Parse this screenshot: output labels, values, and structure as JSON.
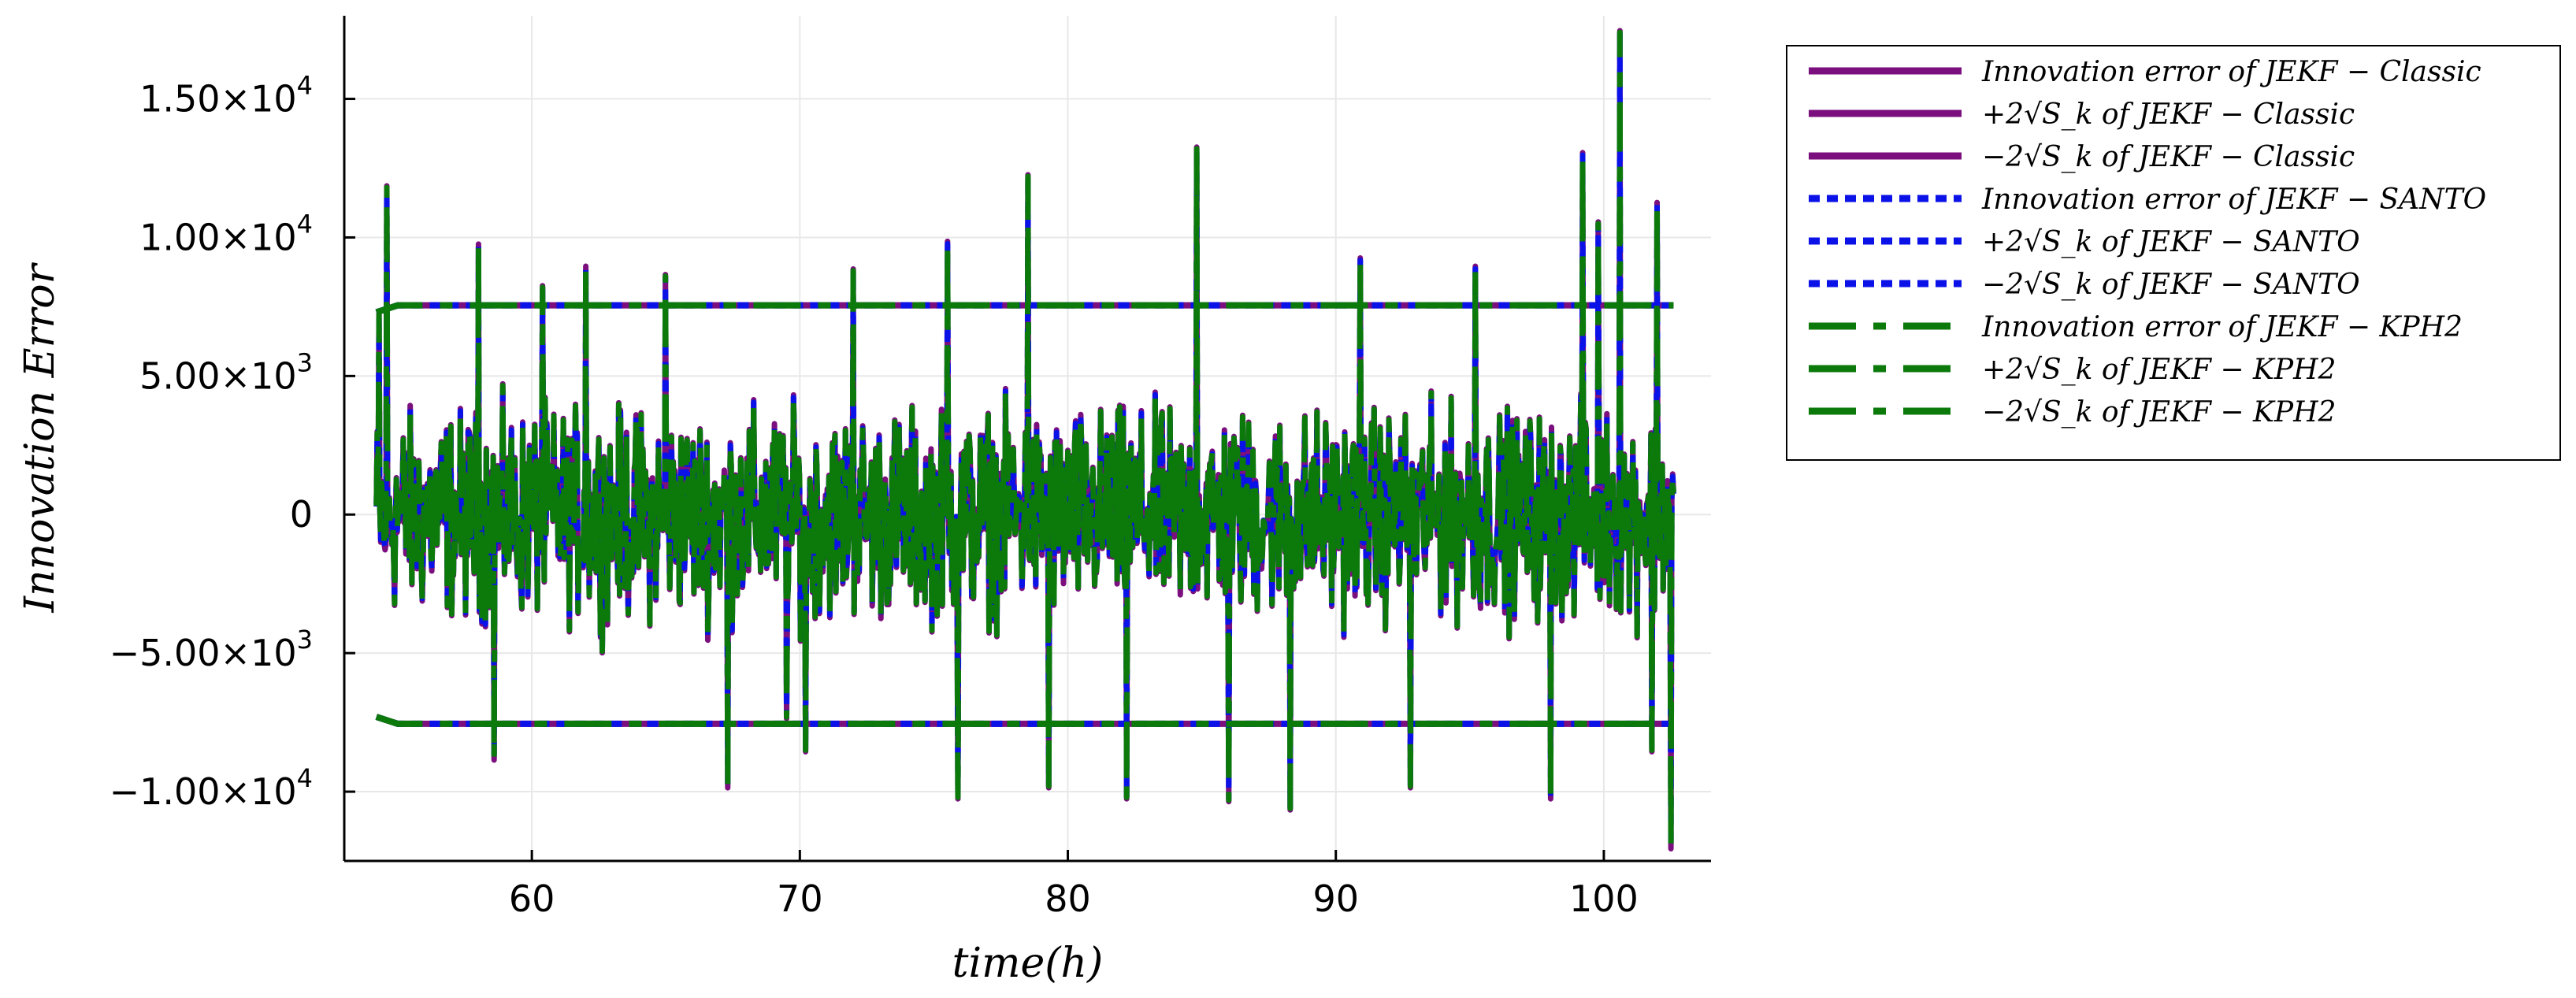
{
  "chart_data": {
    "type": "line",
    "title": "",
    "xlabel": "time(h)",
    "ylabel": "Innovation Error",
    "xlim": [
      53,
      104
    ],
    "ylim": [
      -12500,
      18000
    ],
    "grid": true,
    "legend_position": "outside-right-top",
    "x_ticks": [
      {
        "value": 60,
        "label": "60"
      },
      {
        "value": 70,
        "label": "70"
      },
      {
        "value": 80,
        "label": "80"
      },
      {
        "value": 90,
        "label": "90"
      },
      {
        "value": 100,
        "label": "100"
      }
    ],
    "y_ticks": [
      {
        "value": -10000,
        "mantissa": "−1.00×10",
        "exp": "4"
      },
      {
        "value": -5000,
        "mantissa": "−5.00×10",
        "exp": "3"
      },
      {
        "value": 0,
        "mantissa": "0",
        "exp": ""
      },
      {
        "value": 5000,
        "mantissa": "5.00×10",
        "exp": "3"
      },
      {
        "value": 10000,
        "mantissa": "1.00×10",
        "exp": "4"
      },
      {
        "value": 15000,
        "mantissa": "1.50×10",
        "exp": "4"
      }
    ],
    "series": [
      {
        "name": "Innovation error of JEKF − Classic",
        "color": "#7b0f7e",
        "style": "solid",
        "role": "innovation",
        "filter": "Classic"
      },
      {
        "name": "+2√S_k of JEKF − Classic",
        "color": "#7b0f7e",
        "style": "solid",
        "role": "upper",
        "filter": "Classic",
        "values": [
          7300,
          7550,
          7550,
          7550
        ]
      },
      {
        "name": "−2√S_k of JEKF − Classic",
        "color": "#7b0f7e",
        "style": "solid",
        "role": "lower",
        "filter": "Classic",
        "values": [
          -7300,
          -7550,
          -7550,
          -7550
        ]
      },
      {
        "name": "Innovation error of JEKF − SANTO",
        "color": "#0a12e8",
        "style": "dotted",
        "role": "innovation",
        "filter": "SANTO"
      },
      {
        "name": "+2√S_k of JEKF − SANTO",
        "color": "#0a12e8",
        "style": "dotted",
        "role": "upper",
        "filter": "SANTO",
        "values": [
          7300,
          7550,
          7550,
          7550
        ]
      },
      {
        "name": "−2√S_k of JEKF − SANTO",
        "color": "#0a12e8",
        "style": "dotted",
        "role": "lower",
        "filter": "SANTO",
        "values": [
          -7300,
          -7550,
          -7550,
          -7550
        ]
      },
      {
        "name": "Innovation error of JEKF − KPH2",
        "color": "#0b7a0b",
        "style": "dashdot",
        "role": "innovation",
        "filter": "KPH2"
      },
      {
        "name": "+2√S_k of JEKF − KPH2",
        "color": "#0b7a0b",
        "style": "dashdot",
        "role": "upper",
        "filter": "KPH2",
        "values": [
          7300,
          7550,
          7550,
          7550
        ]
      },
      {
        "name": "−2√S_k of JEKF − KPH2",
        "color": "#0b7a0b",
        "style": "dashdot",
        "role": "lower",
        "filter": "KPH2",
        "values": [
          -7300,
          -7550,
          -7550,
          -7550
        ]
      }
    ],
    "bound_x": [
      54.2,
      55.0,
      80,
      102.6
    ],
    "innovation_x_range": [
      54.2,
      102.6
    ],
    "innovation_peaks": [
      {
        "x": 54.6,
        "y": 11800
      },
      {
        "x": 54.3,
        "y": 7200
      },
      {
        "x": 54.5,
        "y": -1000
      },
      {
        "x": 58.0,
        "y": 9700
      },
      {
        "x": 58.6,
        "y": -8800
      },
      {
        "x": 60.4,
        "y": 8200
      },
      {
        "x": 62.0,
        "y": 8900
      },
      {
        "x": 65.0,
        "y": 8600
      },
      {
        "x": 67.3,
        "y": -9800
      },
      {
        "x": 69.5,
        "y": -7300
      },
      {
        "x": 70.2,
        "y": -8500
      },
      {
        "x": 72.0,
        "y": 8800
      },
      {
        "x": 75.5,
        "y": 9800
      },
      {
        "x": 75.9,
        "y": -10200
      },
      {
        "x": 78.5,
        "y": 12200
      },
      {
        "x": 79.3,
        "y": -9800
      },
      {
        "x": 82.2,
        "y": -10200
      },
      {
        "x": 84.8,
        "y": 13200
      },
      {
        "x": 86.0,
        "y": -10300
      },
      {
        "x": 88.3,
        "y": -10600
      },
      {
        "x": 90.9,
        "y": 9200
      },
      {
        "x": 92.8,
        "y": -9800
      },
      {
        "x": 95.2,
        "y": 8900
      },
      {
        "x": 98.0,
        "y": -10200
      },
      {
        "x": 99.2,
        "y": 13000
      },
      {
        "x": 99.8,
        "y": 10500
      },
      {
        "x": 100.6,
        "y": 17400
      },
      {
        "x": 102.0,
        "y": 11200
      },
      {
        "x": 102.5,
        "y": -12000
      },
      {
        "x": 101.8,
        "y": -8500
      }
    ]
  }
}
